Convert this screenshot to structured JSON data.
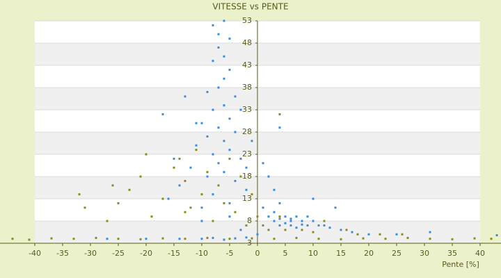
{
  "chart_data": {
    "type": "scatter",
    "title": "VITESSE vs PENTE",
    "x_label": "Pente [%]",
    "xlim": [
      -40,
      40
    ],
    "ylim": [
      3,
      53
    ],
    "xticks": [
      -40,
      -35,
      -30,
      -25,
      -20,
      -15,
      -10,
      -5,
      0,
      5,
      10,
      15,
      20,
      25,
      30,
      35,
      40
    ],
    "yticks": [
      3,
      8,
      13,
      18,
      23,
      28,
      33,
      38,
      43,
      48,
      53
    ],
    "grid": true,
    "series": [
      {
        "color": "#3a8ddd",
        "x": [
          -8,
          -7,
          -6,
          -5,
          -7,
          -6,
          -8,
          -5,
          -6,
          -7,
          -9,
          -4,
          -6,
          -8,
          -5,
          -10,
          -7,
          -4,
          -9,
          -6,
          -11,
          -5,
          -8,
          -3,
          -7,
          -12,
          -6,
          -9,
          -4,
          -14,
          -2,
          -8,
          -16,
          -5,
          -10,
          -1,
          -2,
          -3,
          -17,
          -13,
          -11,
          -15,
          1,
          2,
          3,
          4,
          3,
          5,
          6,
          7,
          8,
          4,
          6,
          9,
          10,
          11,
          12,
          5,
          7,
          8,
          13,
          15,
          17,
          2,
          3,
          4,
          6,
          9,
          14,
          20,
          25,
          31,
          43,
          -10,
          -8,
          -6,
          -4,
          -2,
          -14,
          -20,
          -27,
          -5,
          -3,
          0,
          1,
          10,
          4,
          -10
        ],
        "values": [
          52,
          50,
          53,
          49,
          47,
          45,
          44,
          42,
          40,
          38,
          37,
          36,
          34,
          33,
          31,
          30,
          29,
          28,
          27,
          26,
          25,
          24,
          23,
          22,
          21,
          20,
          19,
          18,
          17,
          16,
          15,
          14,
          13,
          12,
          11,
          26,
          20,
          33,
          32,
          36,
          30,
          22,
          21,
          18,
          15,
          12,
          10,
          9,
          8,
          9,
          8,
          7,
          8.5,
          7,
          8,
          7,
          7,
          7.5,
          6.5,
          7.2,
          6.5,
          6,
          5.5,
          9,
          8,
          8.5,
          7,
          9,
          11,
          5,
          5,
          5.5,
          4.8,
          4,
          4.2,
          3.8,
          4.1,
          4.3,
          4,
          4,
          4,
          9,
          6,
          5,
          11,
          13,
          29,
          8
        ]
      },
      {
        "color": "#8a8a1e",
        "x": [
          -44,
          -41,
          -37,
          -33,
          -29,
          -25,
          -21,
          -17,
          -13,
          -9,
          -5,
          -1,
          3,
          7,
          11,
          15,
          19,
          23,
          27,
          31,
          35,
          39,
          42,
          -31,
          -32,
          -27,
          -25,
          -23,
          -21,
          -19,
          -17,
          -15,
          -14,
          -13,
          -12,
          -11,
          -10,
          -9,
          -8,
          -7,
          -6,
          -5,
          -4,
          -3,
          -2,
          -1,
          0,
          1,
          2,
          4,
          5,
          8,
          10,
          12,
          16,
          18,
          22,
          26,
          4,
          -26,
          -20,
          -13
        ],
        "values": [
          4,
          3.8,
          4.1,
          4,
          4.2,
          4,
          3.9,
          4.1,
          4,
          4.2,
          4,
          4.1,
          4,
          4.2,
          4,
          3.9,
          4.1,
          4,
          4.2,
          4,
          3.9,
          4.1,
          4,
          11,
          14,
          8,
          12,
          15,
          18,
          9,
          13,
          20,
          22,
          17,
          11,
          24,
          14,
          19,
          8,
          16,
          12,
          22,
          10,
          18,
          7,
          14,
          9,
          7,
          6,
          9,
          6,
          6,
          5.5,
          8,
          6,
          5,
          5,
          5,
          32,
          16,
          23,
          10
        ]
      }
    ]
  }
}
